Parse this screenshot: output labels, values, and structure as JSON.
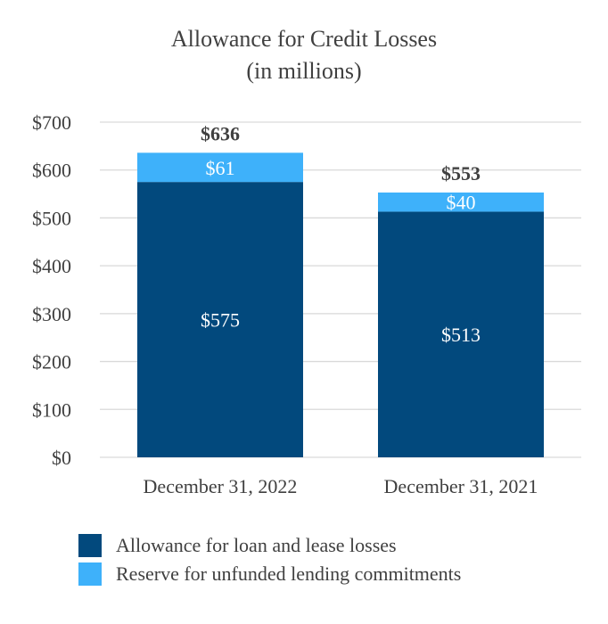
{
  "chart_data": {
    "type": "bar",
    "stacked": true,
    "title": "Allowance for Credit Losses",
    "subtitle": "(in millions)",
    "categories": [
      "December 31, 2022",
      "December 31, 2021"
    ],
    "series": [
      {
        "name": "Allowance for loan and lease losses",
        "values": [
          575,
          513
        ],
        "labels": [
          "$575",
          "$513"
        ],
        "color": "#02497D"
      },
      {
        "name": "Reserve for unfunded lending commitments",
        "values": [
          61,
          40
        ],
        "labels": [
          "$61",
          "$40"
        ],
        "color": "#3EB1FA"
      }
    ],
    "totals": [
      636,
      553
    ],
    "total_labels": [
      "$636",
      "$553"
    ],
    "ylim": [
      0,
      700
    ],
    "yticks": [
      0,
      100,
      200,
      300,
      400,
      500,
      600,
      700
    ],
    "ytick_labels": [
      "$0",
      "$100",
      "$200",
      "$300",
      "$400",
      "$500",
      "$600",
      "$700"
    ],
    "grid": true,
    "legend_position": "bottom-left"
  }
}
